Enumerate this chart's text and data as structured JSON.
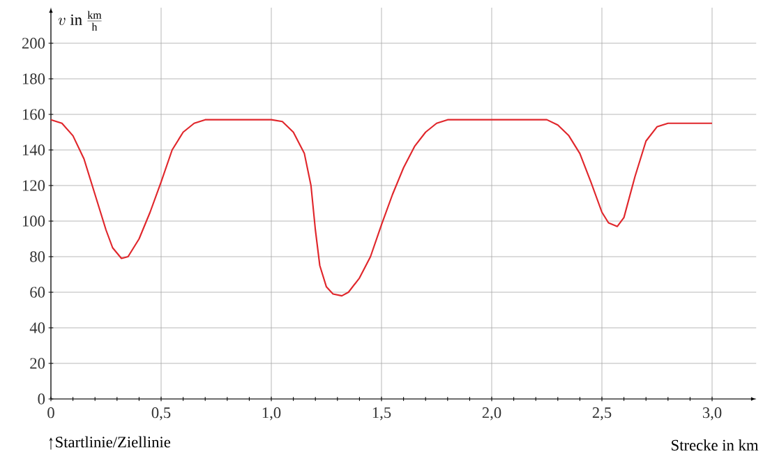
{
  "chart_data": {
    "type": "line",
    "xlabel": "Strecke in km",
    "ylabel": "v\\ \\mathrm{in}\\ \\frac{\\mathrm{km}}{\\mathrm{h}}",
    "annotations": [
      "Startlinie/Ziellinie"
    ],
    "x": [
      0,
      0.05,
      0.1,
      0.15,
      0.2,
      0.25,
      0.28,
      0.32,
      0.35,
      0.4,
      0.45,
      0.5,
      0.55,
      0.6,
      0.65,
      0.7,
      1.0,
      1.05,
      1.1,
      1.15,
      1.18,
      1.2,
      1.22,
      1.25,
      1.28,
      1.32,
      1.35,
      1.4,
      1.45,
      1.5,
      1.55,
      1.6,
      1.65,
      1.7,
      1.75,
      1.8,
      2.25,
      2.3,
      2.35,
      2.4,
      2.45,
      2.5,
      2.53,
      2.57,
      2.6,
      2.65,
      2.7,
      2.75,
      2.8,
      3.0
    ],
    "series": [
      {
        "color": "#e0262b",
        "values": [
          157,
          155,
          148,
          135,
          115,
          95,
          85,
          79,
          80,
          90,
          105,
          122,
          140,
          150,
          155,
          157,
          157,
          156,
          150,
          138,
          120,
          95,
          75,
          63,
          59,
          58,
          60,
          68,
          80,
          98,
          115,
          130,
          142,
          150,
          155,
          157,
          157,
          154,
          148,
          138,
          122,
          105,
          99,
          97,
          102,
          125,
          145,
          153,
          155,
          155
        ]
      }
    ],
    "xlim": [
      0,
      3.2
    ],
    "ylim": [
      0,
      220
    ],
    "xticks": [
      0,
      {
        "value": 0.5,
        "label": "0,5"
      },
      {
        "value": 1.0,
        "label": "1,0"
      },
      {
        "value": 1.5,
        "label": "1,5"
      },
      {
        "value": 2.0,
        "label": "2,0"
      },
      {
        "value": 2.5,
        "label": "2,5"
      },
      {
        "value": 3.0,
        "label": "3,0"
      }
    ],
    "yticks": [
      0,
      20,
      40,
      60,
      80,
      100,
      120,
      140,
      160,
      180,
      200
    ],
    "grid": true,
    "marker": "none",
    "line_style": "solid"
  }
}
